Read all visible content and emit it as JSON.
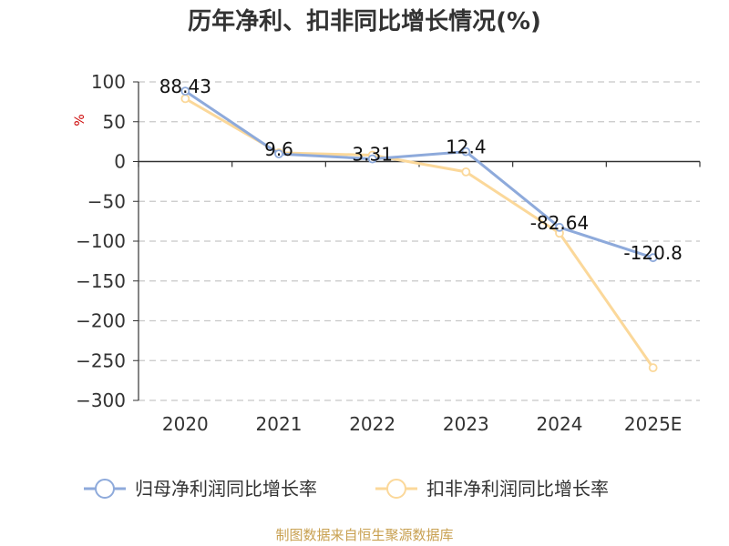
{
  "chart_data": {
    "type": "line",
    "title": "历年净利、扣非同比增长情况(%)",
    "ylabel": "%",
    "categories": [
      "2020",
      "2021",
      "2022",
      "2023",
      "2024",
      "2025E"
    ],
    "ylim": [
      -300,
      100
    ],
    "yticks": [
      100,
      50,
      0,
      -50,
      -100,
      -150,
      -200,
      -250,
      -300
    ],
    "grid": true,
    "legend_position": "bottom",
    "series": [
      {
        "name": "归母净利润同比增长率",
        "color": "#8eaadb",
        "values": [
          88.43,
          9.6,
          3.31,
          12.4,
          -82.64,
          -120.8
        ],
        "labels": [
          "88.43",
          "9.6",
          "3.31",
          "12.4",
          "-82.64",
          "-120.8"
        ]
      },
      {
        "name": "扣非净利润同比增长率",
        "color": "#fbd89a",
        "values": [
          79,
          11,
          8,
          -13,
          -90,
          -259
        ]
      }
    ],
    "source": "制图数据来自恒生聚源数据库"
  }
}
